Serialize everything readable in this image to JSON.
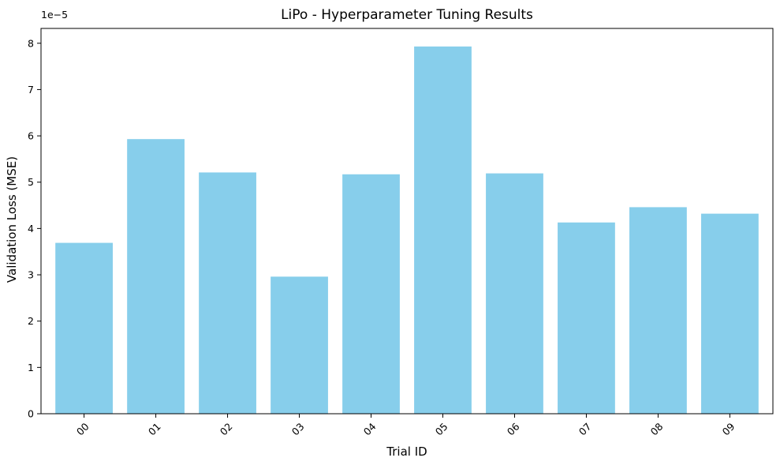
{
  "chart_data": {
    "type": "bar",
    "title": "LiPo - Hyperparameter Tuning Results",
    "xlabel": "Trial ID",
    "ylabel": "Validation Loss (MSE)",
    "categories": [
      "00",
      "01",
      "02",
      "03",
      "04",
      "05",
      "06",
      "07",
      "08",
      "09"
    ],
    "values": [
      3.69e-05,
      5.93e-05,
      5.21e-05,
      2.96e-05,
      5.17e-05,
      7.93e-05,
      5.19e-05,
      4.13e-05,
      4.46e-05,
      4.32e-05
    ],
    "ylim": [
      0,
      8.32e-05
    ],
    "yticks": [
      0,
      1e-05,
      2e-05,
      3e-05,
      4e-05,
      5e-05,
      6e-05,
      7e-05,
      8e-05
    ],
    "ytick_labels": [
      "0",
      "1",
      "2",
      "3",
      "4",
      "5",
      "6",
      "7",
      "8"
    ],
    "y_offset_text": "1e−5",
    "bar_color": "#87ceeb",
    "grid": false,
    "legend": "none",
    "xtick_rotation": "45"
  }
}
